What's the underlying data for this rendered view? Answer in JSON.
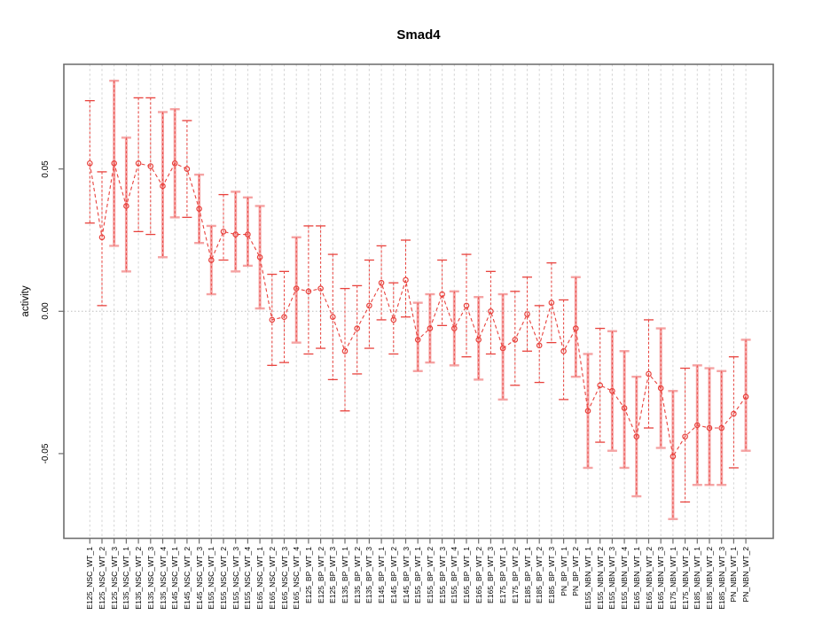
{
  "chart_data": {
    "type": "line",
    "title": "Smad4",
    "ylabel": "activity",
    "xlabel": "",
    "ylim": [
      -0.08,
      0.087
    ],
    "yticks": [
      0.05,
      0.0,
      -0.05
    ],
    "ytick_labels": [
      "0.05",
      "0.00",
      "-0.05"
    ],
    "legend": "none",
    "grid": "vertical dotted line per category; dotted horizontal line at y=0",
    "colors": {
      "series_red": "#e8423d",
      "errorbar_pink": "#f5a3a3",
      "gridline": "#d4d4d4",
      "zero_line": "#bdbdbd",
      "axis_frame": "#6e6e6e",
      "text": "#000000"
    },
    "marker": "open-circle",
    "line_style": "dashed",
    "categories": [
      "E125_NSC_WT_1",
      "E125_NSC_WT_2",
      "E125_NSC_WT_3",
      "E135_NSC_WT_1",
      "E135_NSC_WT_2",
      "E135_NSC_WT_3",
      "E135_NSC_WT_4",
      "E145_NSC_WT_1",
      "E145_NSC_WT_2",
      "E145_NSC_WT_3",
      "E155_NSC_WT_1",
      "E155_NSC_WT_2",
      "E155_NSC_WT_3",
      "E155_NSC_WT_4",
      "E165_NSC_WT_1",
      "E165_NSC_WT_2",
      "E165_NSC_WT_3",
      "E165_NSC_WT_4",
      "E125_BP_WT_1",
      "E125_BP_WT_2",
      "E125_BP_WT_3",
      "E135_BP_WT_1",
      "E135_BP_WT_2",
      "E135_BP_WT_3",
      "E145_BP_WT_1",
      "E145_BP_WT_2",
      "E145_BP_WT_3",
      "E155_BP_WT_1",
      "E155_BP_WT_2",
      "E155_BP_WT_3",
      "E155_BP_WT_4",
      "E165_BP_WT_1",
      "E165_BP_WT_2",
      "E165_BP_WT_3",
      "E175_BP_WT_1",
      "E175_BP_WT_2",
      "E185_BP_WT_1",
      "E185_BP_WT_2",
      "E185_BP_WT_3",
      "PN_BP_WT_1",
      "PN_BP_WT_2",
      "E155_NBN_WT_1",
      "E155_NBN_WT_2",
      "E155_NBN_WT_3",
      "E155_NBN_WT_4",
      "E165_NBN_WT_1",
      "E165_NBN_WT_2",
      "E165_NBN_WT_3",
      "E175_NBN_WT_1",
      "E175_NBN_WT_2",
      "E185_NBN_WT_1",
      "E185_NBN_WT_2",
      "E185_NBN_WT_3",
      "PN_NBN_WT_1",
      "PN_NBN_WT_2"
    ],
    "points": [
      {
        "label": "E125_NSC_WT_1",
        "mean": 0.052,
        "upper": 0.074,
        "lower": 0.031,
        "bar_style": "dark"
      },
      {
        "label": "E125_NSC_WT_2",
        "mean": 0.026,
        "upper": 0.049,
        "lower": 0.002,
        "bar_style": "dark"
      },
      {
        "label": "E125_NSC_WT_3",
        "mean": 0.052,
        "upper": 0.081,
        "lower": 0.023,
        "bar_style": "pink"
      },
      {
        "label": "E135_NSC_WT_1",
        "mean": 0.037,
        "upper": 0.061,
        "lower": 0.014,
        "bar_style": "pink"
      },
      {
        "label": "E135_NSC_WT_2",
        "mean": 0.052,
        "upper": 0.075,
        "lower": 0.028,
        "bar_style": "dark"
      },
      {
        "label": "E135_NSC_WT_3",
        "mean": 0.051,
        "upper": 0.075,
        "lower": 0.027,
        "bar_style": "dark"
      },
      {
        "label": "E135_NSC_WT_4",
        "mean": 0.044,
        "upper": 0.07,
        "lower": 0.019,
        "bar_style": "pink"
      },
      {
        "label": "E145_NSC_WT_1",
        "mean": 0.052,
        "upper": 0.071,
        "lower": 0.033,
        "bar_style": "pink"
      },
      {
        "label": "E145_NSC_WT_2",
        "mean": 0.05,
        "upper": 0.067,
        "lower": 0.033,
        "bar_style": "dark"
      },
      {
        "label": "E145_NSC_WT_3",
        "mean": 0.036,
        "upper": 0.048,
        "lower": 0.024,
        "bar_style": "pink"
      },
      {
        "label": "E155_NSC_WT_1",
        "mean": 0.018,
        "upper": 0.03,
        "lower": 0.006,
        "bar_style": "pink"
      },
      {
        "label": "E155_NSC_WT_2",
        "mean": 0.028,
        "upper": 0.041,
        "lower": 0.018,
        "bar_style": "dark"
      },
      {
        "label": "E155_NSC_WT_3",
        "mean": 0.027,
        "upper": 0.042,
        "lower": 0.014,
        "bar_style": "pink"
      },
      {
        "label": "E155_NSC_WT_4",
        "mean": 0.027,
        "upper": 0.04,
        "lower": 0.016,
        "bar_style": "pink"
      },
      {
        "label": "E165_NSC_WT_1",
        "mean": 0.019,
        "upper": 0.037,
        "lower": 0.001,
        "bar_style": "pink"
      },
      {
        "label": "E165_NSC_WT_2",
        "mean": -0.003,
        "upper": 0.013,
        "lower": -0.019,
        "bar_style": "dark"
      },
      {
        "label": "E165_NSC_WT_3",
        "mean": -0.002,
        "upper": 0.014,
        "lower": -0.018,
        "bar_style": "dark"
      },
      {
        "label": "E165_NSC_WT_4",
        "mean": 0.008,
        "upper": 0.026,
        "lower": -0.011,
        "bar_style": "pink"
      },
      {
        "label": "E125_BP_WT_1",
        "mean": 0.007,
        "upper": 0.03,
        "lower": -0.015,
        "bar_style": "dark"
      },
      {
        "label": "E125_BP_WT_2",
        "mean": 0.008,
        "upper": 0.03,
        "lower": -0.013,
        "bar_style": "dark"
      },
      {
        "label": "E125_BP_WT_3",
        "mean": -0.002,
        "upper": 0.02,
        "lower": -0.024,
        "bar_style": "dark"
      },
      {
        "label": "E135_BP_WT_1",
        "mean": -0.014,
        "upper": 0.008,
        "lower": -0.035,
        "bar_style": "dark"
      },
      {
        "label": "E135_BP_WT_2",
        "mean": -0.006,
        "upper": 0.009,
        "lower": -0.022,
        "bar_style": "dark"
      },
      {
        "label": "E135_BP_WT_3",
        "mean": 0.002,
        "upper": 0.018,
        "lower": -0.013,
        "bar_style": "dark"
      },
      {
        "label": "E145_BP_WT_1",
        "mean": 0.01,
        "upper": 0.023,
        "lower": -0.003,
        "bar_style": "dark"
      },
      {
        "label": "E145_BP_WT_2",
        "mean": -0.003,
        "upper": 0.01,
        "lower": -0.015,
        "bar_style": "dark"
      },
      {
        "label": "E145_BP_WT_3",
        "mean": 0.011,
        "upper": 0.025,
        "lower": -0.002,
        "bar_style": "dark"
      },
      {
        "label": "E155_BP_WT_1",
        "mean": -0.01,
        "upper": 0.003,
        "lower": -0.021,
        "bar_style": "pink"
      },
      {
        "label": "E155_BP_WT_2",
        "mean": -0.006,
        "upper": 0.006,
        "lower": -0.018,
        "bar_style": "pink"
      },
      {
        "label": "E155_BP_WT_3",
        "mean": 0.006,
        "upper": 0.018,
        "lower": -0.005,
        "bar_style": "dark"
      },
      {
        "label": "E155_BP_WT_4",
        "mean": -0.006,
        "upper": 0.007,
        "lower": -0.019,
        "bar_style": "pink"
      },
      {
        "label": "E165_BP_WT_1",
        "mean": 0.002,
        "upper": 0.02,
        "lower": -0.016,
        "bar_style": "dark"
      },
      {
        "label": "E165_BP_WT_2",
        "mean": -0.01,
        "upper": 0.005,
        "lower": -0.024,
        "bar_style": "pink"
      },
      {
        "label": "E165_BP_WT_3",
        "mean": 0.0,
        "upper": 0.014,
        "lower": -0.015,
        "bar_style": "dark"
      },
      {
        "label": "E175_BP_WT_1",
        "mean": -0.013,
        "upper": 0.006,
        "lower": -0.031,
        "bar_style": "pink"
      },
      {
        "label": "E175_BP_WT_2",
        "mean": -0.01,
        "upper": 0.007,
        "lower": -0.026,
        "bar_style": "dark"
      },
      {
        "label": "E185_BP_WT_1",
        "mean": -0.001,
        "upper": 0.012,
        "lower": -0.014,
        "bar_style": "dark"
      },
      {
        "label": "E185_BP_WT_2",
        "mean": -0.012,
        "upper": 0.002,
        "lower": -0.025,
        "bar_style": "dark"
      },
      {
        "label": "E185_BP_WT_3",
        "mean": 0.003,
        "upper": 0.017,
        "lower": -0.011,
        "bar_style": "dark"
      },
      {
        "label": "PN_BP_WT_1",
        "mean": -0.014,
        "upper": 0.004,
        "lower": -0.031,
        "bar_style": "dark"
      },
      {
        "label": "PN_BP_WT_2",
        "mean": -0.006,
        "upper": 0.012,
        "lower": -0.023,
        "bar_style": "pink"
      },
      {
        "label": "E155_NBN_WT_1",
        "mean": -0.035,
        "upper": -0.015,
        "lower": -0.055,
        "bar_style": "pink"
      },
      {
        "label": "E155_NBN_WT_2",
        "mean": -0.026,
        "upper": -0.006,
        "lower": -0.046,
        "bar_style": "dark"
      },
      {
        "label": "E155_NBN_WT_3",
        "mean": -0.028,
        "upper": -0.007,
        "lower": -0.049,
        "bar_style": "pink"
      },
      {
        "label": "E155_NBN_WT_4",
        "mean": -0.034,
        "upper": -0.014,
        "lower": -0.055,
        "bar_style": "pink"
      },
      {
        "label": "E165_NBN_WT_1",
        "mean": -0.044,
        "upper": -0.023,
        "lower": -0.065,
        "bar_style": "pink"
      },
      {
        "label": "E165_NBN_WT_2",
        "mean": -0.022,
        "upper": -0.003,
        "lower": -0.041,
        "bar_style": "dark"
      },
      {
        "label": "E165_NBN_WT_3",
        "mean": -0.027,
        "upper": -0.006,
        "lower": -0.048,
        "bar_style": "pink"
      },
      {
        "label": "E175_NBN_WT_1",
        "mean": -0.051,
        "upper": -0.028,
        "lower": -0.073,
        "bar_style": "pink"
      },
      {
        "label": "E175_NBN_WT_2",
        "mean": -0.044,
        "upper": -0.02,
        "lower": -0.067,
        "bar_style": "dark"
      },
      {
        "label": "E185_NBN_WT_1",
        "mean": -0.04,
        "upper": -0.019,
        "lower": -0.061,
        "bar_style": "pink"
      },
      {
        "label": "E185_NBN_WT_2",
        "mean": -0.041,
        "upper": -0.02,
        "lower": -0.061,
        "bar_style": "pink"
      },
      {
        "label": "E185_NBN_WT_3",
        "mean": -0.041,
        "upper": -0.021,
        "lower": -0.061,
        "bar_style": "pink"
      },
      {
        "label": "PN_NBN_WT_1",
        "mean": -0.036,
        "upper": -0.016,
        "lower": -0.055,
        "bar_style": "dark"
      },
      {
        "label": "PN_NBN_WT_2",
        "mean": -0.03,
        "upper": -0.01,
        "lower": -0.049,
        "bar_style": "pink"
      }
    ]
  }
}
